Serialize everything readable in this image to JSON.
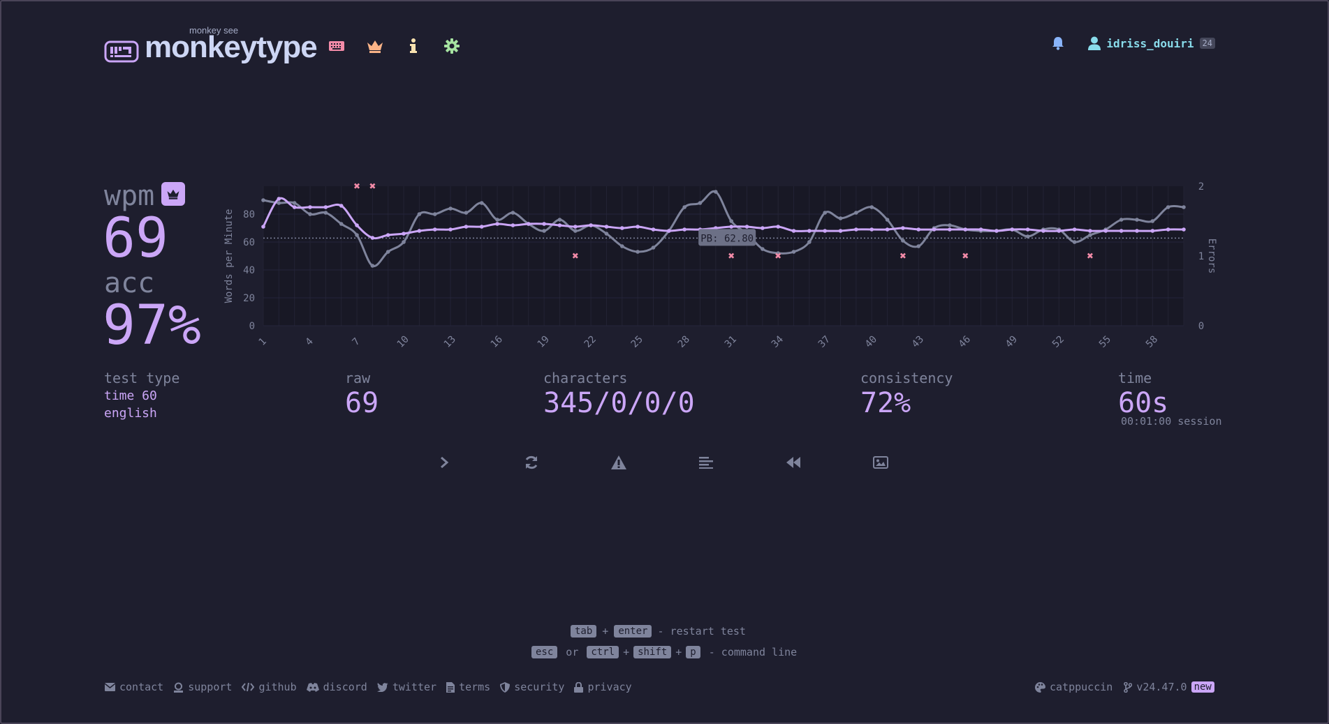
{
  "header": {
    "logo_sub": "monkey see",
    "logo_title": "monkeytype",
    "username": "idriss_douiri",
    "level": "24",
    "nav_icons": [
      "keyboard-icon",
      "crown-icon",
      "info-icon",
      "gear-icon"
    ],
    "colors": {
      "keyboard": "#f38ba8",
      "crown": "#fab387",
      "info": "#f9e2af",
      "gear": "#a6e3a1",
      "bell": "#89b4fa",
      "user": "#89dceb"
    }
  },
  "result": {
    "wpm_label": "wpm",
    "wpm": "69",
    "acc_label": "acc",
    "acc": "97%",
    "test_type_label": "test type",
    "test_type_mode": "time 60",
    "test_type_lang": "english",
    "raw_label": "raw",
    "raw": "69",
    "characters_label": "characters",
    "characters": "345/0/0/0",
    "consistency_label": "consistency",
    "consistency": "72%",
    "time_label": "time",
    "time": "60s",
    "session": "00:01:00 session"
  },
  "chart_data": {
    "type": "line",
    "ylabel": "Words per Minute",
    "y2label": "Errors",
    "ylim": [
      0,
      100
    ],
    "y2lim": [
      0,
      2
    ],
    "yticks": [
      "0",
      "20",
      "40",
      "60",
      "80"
    ],
    "y2ticks": [
      "0",
      "1",
      "2"
    ],
    "xticks": [
      "1",
      "4",
      "7",
      "10",
      "13",
      "16",
      "19",
      "22",
      "25",
      "28",
      "31",
      "34",
      "37",
      "40",
      "43",
      "46",
      "49",
      "52",
      "55",
      "58"
    ],
    "pb_label": "PB: 62.80",
    "pb_value": 62.8,
    "x": [
      1,
      2,
      3,
      4,
      5,
      6,
      7,
      8,
      9,
      10,
      11,
      12,
      13,
      14,
      15,
      16,
      17,
      18,
      19,
      20,
      21,
      22,
      23,
      24,
      25,
      26,
      27,
      28,
      29,
      30,
      31,
      32,
      33,
      34,
      35,
      36,
      37,
      38,
      39,
      40,
      41,
      42,
      43,
      44,
      45,
      46,
      47,
      48,
      49,
      50,
      51,
      52,
      53,
      54,
      55,
      56,
      57,
      58,
      59,
      60
    ],
    "series": [
      {
        "name": "wpm",
        "color": "#cba6f7",
        "values": [
          71,
          91,
          85,
          85,
          85,
          86,
          72,
          63,
          65,
          66,
          68,
          69,
          69,
          71,
          71,
          73,
          72,
          73,
          73,
          72,
          71,
          72,
          71,
          70,
          71,
          69,
          68,
          69,
          69,
          70,
          71,
          71,
          70,
          71,
          68,
          68,
          68,
          68,
          69,
          69,
          69,
          70,
          69,
          69,
          69,
          69,
          69,
          68,
          69,
          69,
          68,
          68,
          69,
          68,
          68,
          68,
          68,
          68,
          69,
          69
        ]
      },
      {
        "name": "raw",
        "color": "#7f849c",
        "values": [
          90,
          88,
          88,
          80,
          81,
          73,
          65,
          43,
          53,
          60,
          80,
          80,
          84,
          81,
          88,
          76,
          81,
          73,
          68,
          76,
          68,
          72,
          66,
          57,
          53,
          56,
          68,
          85,
          88,
          96,
          75,
          66,
          55,
          52,
          53,
          60,
          81,
          77,
          81,
          85,
          76,
          61,
          57,
          70,
          72,
          69,
          68,
          68,
          69,
          64,
          69,
          69,
          60,
          65,
          69,
          76,
          76,
          75,
          85,
          85
        ]
      }
    ],
    "errors": [
      {
        "x": 7,
        "count": 2
      },
      {
        "x": 8,
        "count": 2
      },
      {
        "x": 21,
        "count": 1
      },
      {
        "x": 31,
        "count": 1
      },
      {
        "x": 34,
        "count": 1
      },
      {
        "x": 42,
        "count": 1
      },
      {
        "x": 46,
        "count": 1
      },
      {
        "x": 54,
        "count": 1
      }
    ]
  },
  "actions": [
    {
      "name": "next-test-button",
      "icon": "chevron-right-icon"
    },
    {
      "name": "restart-button",
      "icon": "refresh-icon"
    },
    {
      "name": "report-button",
      "icon": "warning-icon"
    },
    {
      "name": "word-history-button",
      "icon": "align-left-icon"
    },
    {
      "name": "replay-button",
      "icon": "backward-icon"
    },
    {
      "name": "screenshot-button",
      "icon": "image-icon"
    }
  ],
  "hints": {
    "tab": "tab",
    "plus": "+",
    "enter": "enter",
    "restart": "- restart test",
    "esc": "esc",
    "or": "or",
    "ctrl": "ctrl",
    "shift": "shift",
    "p": "p",
    "command": "- command line"
  },
  "footer": {
    "contact": "contact",
    "support": "support",
    "github": "github",
    "discord": "discord",
    "twitter": "twitter",
    "terms": "terms",
    "security": "security",
    "privacy": "privacy",
    "theme": "catppuccin",
    "version": "v24.47.0",
    "new": "new"
  }
}
